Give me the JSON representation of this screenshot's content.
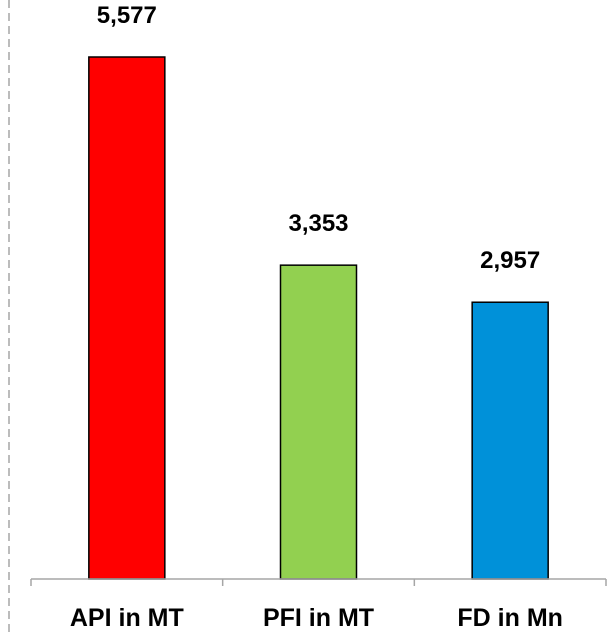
{
  "chart_data": {
    "type": "bar",
    "categories": [
      "API in MT",
      "PFI in MT",
      "FD in Mn"
    ],
    "values": [
      5577,
      3353,
      2957
    ],
    "value_labels": [
      "5,577",
      "3,353",
      "2,957"
    ],
    "colors": [
      "#ff0000",
      "#92d050",
      "#0091d9"
    ],
    "title": "",
    "xlabel": "",
    "ylabel": "",
    "ylim": [
      0,
      5577
    ],
    "grid": false,
    "legend": "none"
  }
}
